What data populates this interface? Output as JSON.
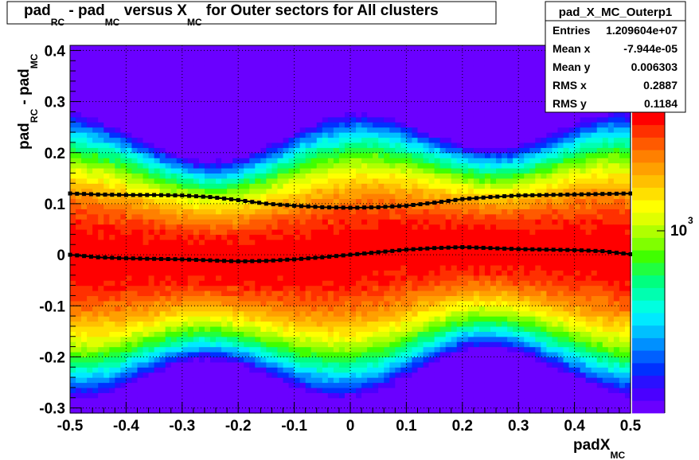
{
  "chart_data": {
    "type": "heatmap",
    "title": {
      "segments": [
        "pad",
        "RC",
        " - pad",
        "MC",
        " versus X",
        "MC",
        " for Outer sectors for All clusters"
      ]
    },
    "xlabel": {
      "main": "padX",
      "sub": "MC"
    },
    "ylabel": {
      "main1": "pad",
      "sub1": "RC",
      "main2": " - pad",
      "sub2": "MC"
    },
    "xlim": [
      -0.5,
      0.5
    ],
    "ylim": [
      -0.31,
      0.41
    ],
    "x_ticks": [
      -0.5,
      -0.4,
      -0.3,
      -0.2,
      -0.1,
      0,
      0.1,
      0.2,
      0.3,
      0.4,
      0.5
    ],
    "x_tick_labels": [
      "-0.5",
      "-0.4",
      "-0.3",
      "-0.2",
      "-0.1",
      "0",
      "0.1",
      "0.2",
      "0.3",
      "0.4",
      "0.5"
    ],
    "y_ticks": [
      -0.3,
      -0.2,
      -0.1,
      0,
      0.1,
      0.2,
      0.3,
      0.4
    ],
    "y_tick_labels": [
      "-0.3",
      "-0.2",
      "-0.1",
      "0",
      "0.1",
      "0.2",
      "0.3",
      "0.4"
    ],
    "grid": true,
    "color_scale": {
      "log": true,
      "label_base": "10",
      "label_exp": "3"
    },
    "mean_profile": {
      "x": [
        -0.5,
        -0.45,
        -0.4,
        -0.35,
        -0.3,
        -0.25,
        -0.2,
        -0.15,
        -0.1,
        -0.05,
        0,
        0.05,
        0.1,
        0.15,
        0.2,
        0.25,
        0.3,
        0.35,
        0.4,
        0.45,
        0.5
      ],
      "y": [
        0.0,
        -0.005,
        -0.007,
        -0.008,
        -0.009,
        -0.011,
        -0.013,
        -0.012,
        -0.009,
        -0.005,
        0.0,
        0.005,
        0.01,
        0.013,
        0.015,
        0.013,
        0.011,
        0.01,
        0.009,
        0.007,
        0.001
      ]
    },
    "rms_profile": {
      "x": [
        -0.5,
        -0.45,
        -0.4,
        -0.35,
        -0.3,
        -0.25,
        -0.2,
        -0.15,
        -0.1,
        -0.05,
        0,
        0.05,
        0.1,
        0.15,
        0.2,
        0.25,
        0.3,
        0.35,
        0.4,
        0.45,
        0.5
      ],
      "y": [
        0.12,
        0.118,
        0.117,
        0.117,
        0.116,
        0.113,
        0.107,
        0.1,
        0.096,
        0.093,
        0.092,
        0.093,
        0.096,
        0.102,
        0.109,
        0.113,
        0.116,
        0.117,
        0.118,
        0.119,
        0.12
      ]
    }
  },
  "stats_box": {
    "title": "pad_X_MC_Outerp1",
    "rows": [
      {
        "label": "Entries",
        "value": "1.209604e+07"
      },
      {
        "label": "Mean x",
        "value": "-7.944e-05"
      },
      {
        "label": "Mean y",
        "value": "0.006303"
      },
      {
        "label": "RMS x",
        "value": "0.2887"
      },
      {
        "label": "RMS y",
        "value": "0.1184"
      }
    ]
  },
  "colors": {
    "palette": [
      "#6a00ff",
      "#4a00ff",
      "#2a10ff",
      "#0030ff",
      "#0060ff",
      "#0090ff",
      "#00c0ff",
      "#00eaff",
      "#00ffe0",
      "#00ffb0",
      "#00ff80",
      "#20ff40",
      "#40ff00",
      "#80ff00",
      "#b0ff00",
      "#e0ff00",
      "#ffff00",
      "#ffe000",
      "#ffc000",
      "#ffa000",
      "#ff8000",
      "#ff5a00",
      "#ff3000",
      "#ff0000"
    ],
    "profile": "#000000"
  }
}
